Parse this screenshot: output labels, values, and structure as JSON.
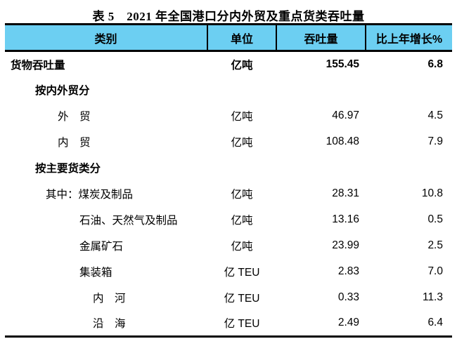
{
  "title": "表 5　2021 年全国港口分内外贸及重点货类吞吐量",
  "colors": {
    "header_bg": "#6CCFF2",
    "rule": "#000000"
  },
  "table": {
    "header": {
      "category": "类别",
      "unit": "单位",
      "throughput": "吞吐量",
      "growth": "比上年增长%"
    },
    "rows": [
      {
        "label": "货物吞吐量",
        "unit": "亿吨",
        "throughput": "155.45",
        "growth": "6.8",
        "bold": true,
        "indent": "0"
      },
      {
        "label": "按内外贸分",
        "unit": "",
        "throughput": "",
        "growth": "",
        "bold": true,
        "indent": "1"
      },
      {
        "label": "外　贸",
        "unit": "亿吨",
        "throughput": "46.97",
        "growth": "4.5",
        "bold": false,
        "indent": "2"
      },
      {
        "label": "内　贸",
        "unit": "亿吨",
        "throughput": "108.48",
        "growth": "7.9",
        "bold": false,
        "indent": "2"
      },
      {
        "label": "按主要货类分",
        "unit": "",
        "throughput": "",
        "growth": "",
        "bold": true,
        "indent": "1"
      },
      {
        "label": "其中：煤炭及制品",
        "unit": "亿吨",
        "throughput": "28.31",
        "growth": "10.8",
        "bold": false,
        "indent": "qz"
      },
      {
        "label": "石油、天然气及制品",
        "unit": "亿吨",
        "throughput": "13.16",
        "growth": "0.5",
        "bold": false,
        "indent": "3"
      },
      {
        "label": "金属矿石",
        "unit": "亿吨",
        "throughput": "23.99",
        "growth": "2.5",
        "bold": false,
        "indent": "3"
      },
      {
        "label": "集装箱",
        "unit": "亿 TEU",
        "throughput": "2.83",
        "growth": "7.0",
        "bold": false,
        "indent": "3"
      },
      {
        "label": "内　河",
        "unit": "亿 TEU",
        "throughput": "0.33",
        "growth": "11.3",
        "bold": false,
        "indent": "4"
      },
      {
        "label": "沿　海",
        "unit": "亿 TEU",
        "throughput": "2.49",
        "growth": "6.4",
        "bold": false,
        "indent": "4"
      }
    ]
  }
}
